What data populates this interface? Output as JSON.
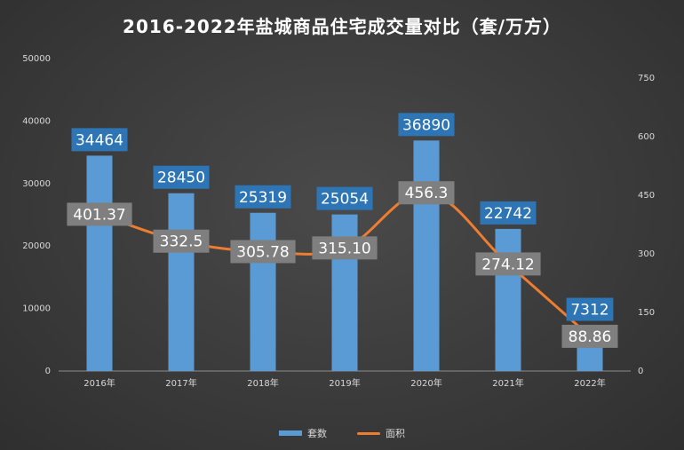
{
  "chart_data": {
    "type": "bar",
    "title": "2016-2022年盐城商品住宅成交量对比（套/万方）",
    "categories": [
      "2016年",
      "2017年",
      "2018年",
      "2019年",
      "2020年",
      "2021年",
      "2022年"
    ],
    "series": [
      {
        "name": "套数",
        "type": "bar",
        "axis": "left",
        "values": [
          34464,
          28450,
          25319,
          25054,
          36890,
          22742,
          7312
        ],
        "labels": [
          "34464",
          "28450",
          "25319",
          "25054",
          "36890",
          "22742",
          "7312"
        ]
      },
      {
        "name": "面积",
        "type": "line",
        "axis": "right",
        "values": [
          401.37,
          332.5,
          305.78,
          315.1,
          456.3,
          274.12,
          88.86
        ],
        "labels": [
          "401.37",
          "332.5",
          "305.78",
          "315.10",
          "456.3",
          "274.12",
          "88.86"
        ]
      }
    ],
    "ylim_left": [
      0,
      50000
    ],
    "yticks_left": [
      "0",
      "10000",
      "20000",
      "30000",
      "40000",
      "50000"
    ],
    "ylim_right": [
      0,
      800
    ],
    "yticks_right": [
      "0",
      "150",
      "300",
      "450",
      "600",
      "750"
    ],
    "legend_position": "bottom",
    "grid": false
  },
  "colors": {
    "bar": "#5b9bd5",
    "line": "#ed7d31",
    "bar_label_bg": "#2e75b6",
    "line_label_bg": "#7f7f7f"
  }
}
